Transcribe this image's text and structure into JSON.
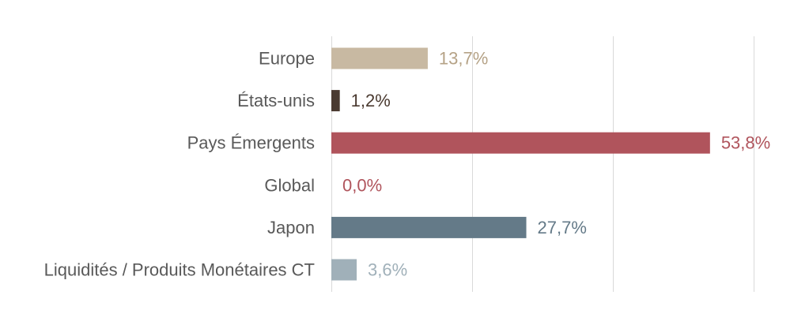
{
  "chart_data": {
    "type": "bar",
    "orientation": "horizontal",
    "categories": [
      "Europe",
      "États-unis",
      "Pays Émergents",
      "Global",
      "Japon",
      "Liquidités / Produits Monétaires CT"
    ],
    "values": [
      13.7,
      1.2,
      53.8,
      0.0,
      27.7,
      3.6
    ],
    "value_labels": [
      "13,7%",
      "1,2%",
      "53,8%",
      "0,0%",
      "27,7%",
      "3,6%"
    ],
    "colors": [
      "#c8b9a2",
      "#4a3a30",
      "#b0545c",
      "#b0545c",
      "#647a88",
      "#a0b0b9"
    ],
    "label_colors": [
      "#b5a286",
      "#4a3a30",
      "#b0545c",
      "#b0545c",
      "#647a88",
      "#a0b0b9"
    ],
    "xlim": [
      0,
      60
    ],
    "gridlines_at": [
      0,
      20,
      40,
      60
    ],
    "grid": "vertical",
    "legend": "none",
    "title": "",
    "xlabel": "",
    "ylabel": ""
  }
}
